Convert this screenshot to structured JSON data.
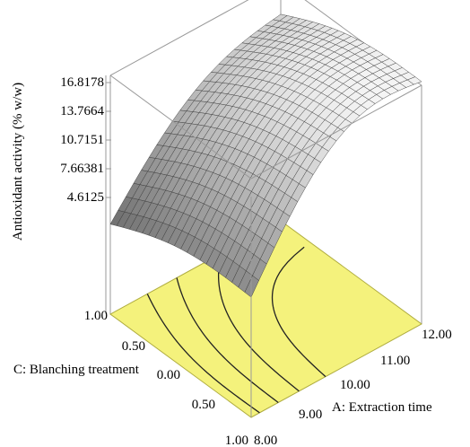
{
  "chart_data": {
    "type": "surface3d",
    "zlabel": "Antioxidant activity (% w/w)",
    "xlabel": "A: Extraction time",
    "ylabel": "C: Blanching treatment",
    "z_ticks": [
      "4.6125",
      "7.66381",
      "10.7151",
      "13.7664",
      "16.8178"
    ],
    "z_range": [
      4.6125,
      16.8178
    ],
    "x_ticks": [
      "8.00",
      "9.00",
      "10.00",
      "11.00",
      "12.00"
    ],
    "x_range": [
      8.0,
      12.0
    ],
    "y_ticks": [
      "1.00",
      "0.50",
      "0.00",
      "0.50",
      "1.00"
    ],
    "y_range": [
      -1.0,
      1.0
    ],
    "surface_corners": {
      "x8_y1": 4.6,
      "x12_y1": 17.2,
      "x8_ym1": 1.5,
      "x12_ym1": 13.5
    },
    "colors": {
      "floor": "#f4f27c",
      "surface_low": "#777777",
      "surface_high": "#f7f7f7",
      "mesh": "#3a3a3a",
      "contour": "#222222",
      "frame": "#9a9a9a"
    }
  }
}
